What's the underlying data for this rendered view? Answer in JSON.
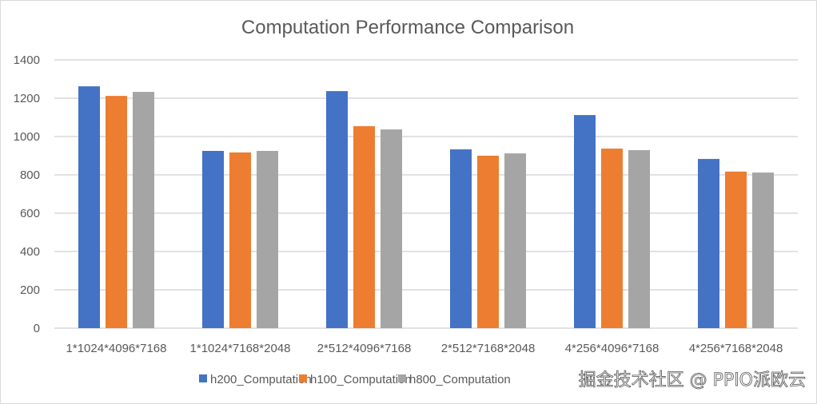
{
  "chart_data": {
    "type": "bar",
    "title": "Computation Performance Comparison",
    "xlabel": "",
    "ylabel": "",
    "ylim": [
      0,
      1400
    ],
    "yticks": [
      0,
      200,
      400,
      600,
      800,
      1000,
      1200,
      1400
    ],
    "grid": true,
    "legend_position": "bottom",
    "categories": [
      "1*1024*4096*7168",
      "1*1024*7168*2048",
      "2*512*4096*7168",
      "2*512*7168*2048",
      "4*256*4096*7168",
      "4*256*7168*2048"
    ],
    "series": [
      {
        "name": "h200_Computation",
        "color": "#4472c4",
        "values": [
          1262,
          925,
          1237,
          933,
          1112,
          883
        ]
      },
      {
        "name": "h100_Computation",
        "color": "#ed7d31",
        "values": [
          1212,
          917,
          1054,
          900,
          937,
          817
        ]
      },
      {
        "name": "h800_Computation",
        "color": "#a5a5a5",
        "values": [
          1233,
          925,
          1037,
          912,
          929,
          812
        ]
      }
    ]
  },
  "watermark": "掘金技术社区 @ PPIO派欧云"
}
